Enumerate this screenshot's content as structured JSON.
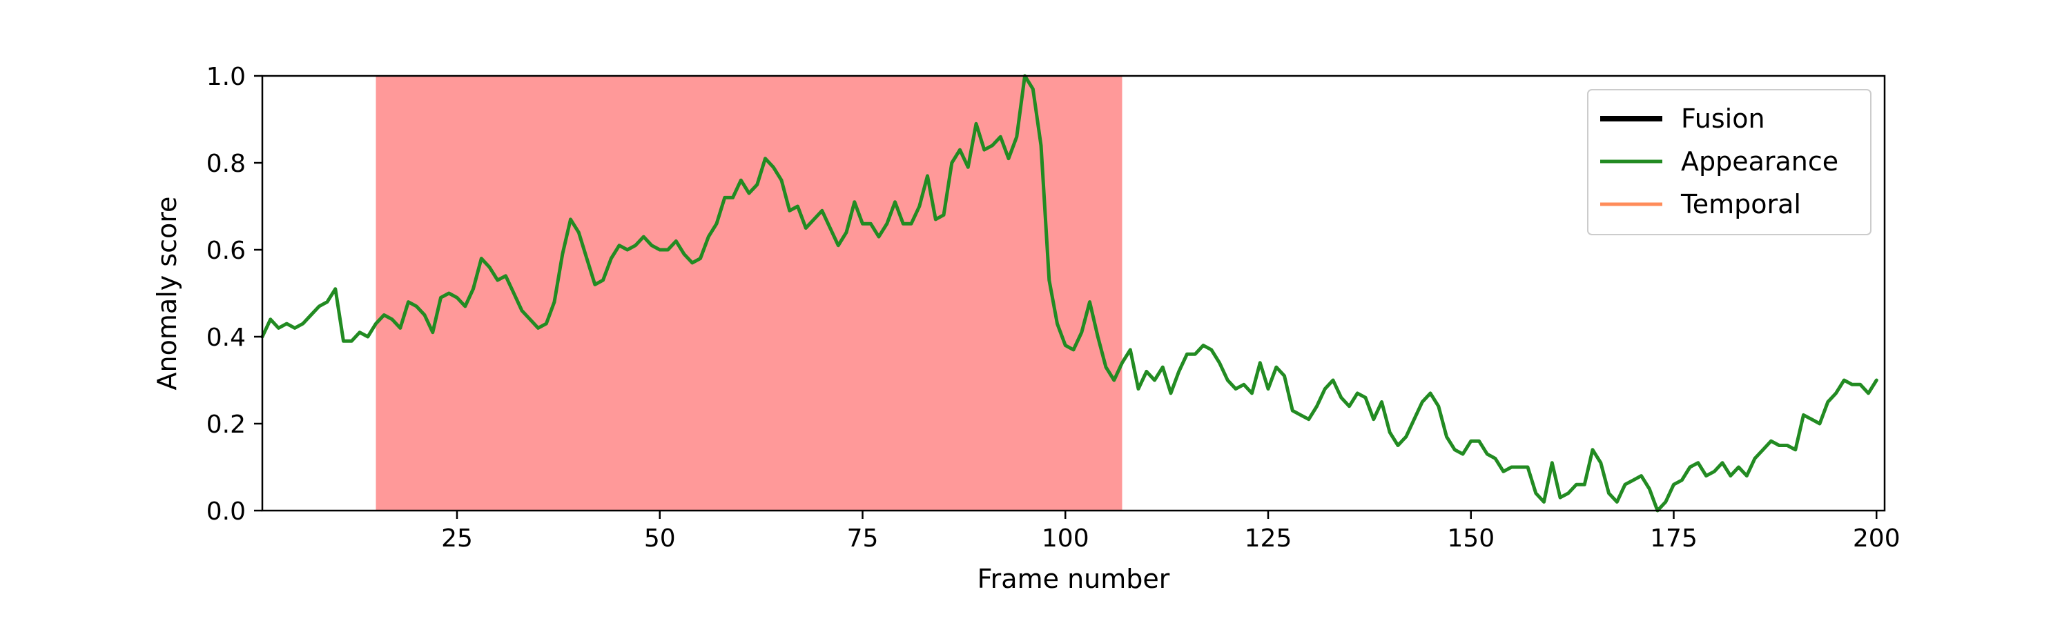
{
  "chart_data": {
    "type": "line",
    "title": "",
    "xlabel": "Frame number",
    "ylabel": "Anomaly score",
    "xlim": [
      1,
      201
    ],
    "ylim": [
      0.0,
      1.0
    ],
    "x_ticks": [
      25,
      50,
      75,
      100,
      125,
      150,
      175,
      200
    ],
    "y_ticks": [
      "0.0",
      "0.2",
      "0.4",
      "0.6",
      "0.8",
      "1.0"
    ],
    "grid": false,
    "legend_position": "top-right",
    "anomaly_region": {
      "x_start": 15,
      "x_end": 107,
      "color": "#ff9999"
    },
    "series": [
      {
        "name": "Fusion",
        "color": "#000000",
        "values": []
      },
      {
        "name": "Appearance",
        "color": "#228b22",
        "x_start": 1,
        "values": [
          0.4,
          0.44,
          0.42,
          0.43,
          0.42,
          0.43,
          0.45,
          0.47,
          0.48,
          0.51,
          0.39,
          0.39,
          0.41,
          0.4,
          0.43,
          0.45,
          0.44,
          0.42,
          0.48,
          0.47,
          0.45,
          0.41,
          0.49,
          0.5,
          0.49,
          0.47,
          0.51,
          0.58,
          0.56,
          0.53,
          0.54,
          0.5,
          0.46,
          0.44,
          0.42,
          0.43,
          0.48,
          0.59,
          0.67,
          0.64,
          0.58,
          0.52,
          0.53,
          0.58,
          0.61,
          0.6,
          0.61,
          0.63,
          0.61,
          0.6,
          0.6,
          0.62,
          0.59,
          0.57,
          0.58,
          0.63,
          0.66,
          0.72,
          0.72,
          0.76,
          0.73,
          0.75,
          0.81,
          0.79,
          0.76,
          0.69,
          0.7,
          0.65,
          0.67,
          0.69,
          0.65,
          0.61,
          0.64,
          0.71,
          0.66,
          0.66,
          0.63,
          0.66,
          0.71,
          0.66,
          0.66,
          0.7,
          0.77,
          0.67,
          0.68,
          0.8,
          0.83,
          0.79,
          0.89,
          0.83,
          0.84,
          0.86,
          0.81,
          0.86,
          1.0,
          0.97,
          0.84,
          0.53,
          0.43,
          0.38,
          0.37,
          0.41,
          0.48,
          0.4,
          0.33,
          0.3,
          0.34,
          0.37,
          0.28,
          0.32,
          0.3,
          0.33,
          0.27,
          0.32,
          0.36,
          0.36,
          0.38,
          0.37,
          0.34,
          0.3,
          0.28,
          0.29,
          0.27,
          0.34,
          0.28,
          0.33,
          0.31,
          0.23,
          0.22,
          0.21,
          0.24,
          0.28,
          0.3,
          0.26,
          0.24,
          0.27,
          0.26,
          0.21,
          0.25,
          0.18,
          0.15,
          0.17,
          0.21,
          0.25,
          0.27,
          0.24,
          0.17,
          0.14,
          0.13,
          0.16,
          0.16,
          0.13,
          0.12,
          0.09,
          0.1,
          0.1,
          0.1,
          0.04,
          0.02,
          0.11,
          0.03,
          0.04,
          0.06,
          0.06,
          0.14,
          0.11,
          0.04,
          0.02,
          0.06,
          0.07,
          0.08,
          0.05,
          0.0,
          0.02,
          0.06,
          0.07,
          0.1,
          0.11,
          0.08,
          0.09,
          0.11,
          0.08,
          0.1,
          0.08,
          0.12,
          0.14,
          0.16,
          0.15,
          0.15,
          0.14,
          0.22,
          0.21,
          0.2,
          0.25,
          0.27,
          0.3,
          0.29,
          0.29,
          0.27,
          0.3
        ]
      },
      {
        "name": "Temporal",
        "color": "#ff8c5a",
        "values": []
      }
    ]
  }
}
